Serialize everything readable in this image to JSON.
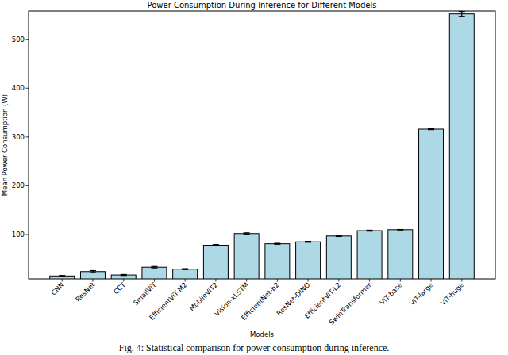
{
  "chart_data": {
    "type": "bar",
    "title": "Power Consumption During Inference for Different Models",
    "x_label": "Models",
    "y_label": "Mean Power Consumption (W)",
    "caption": "Fig. 4: Statistical comparison for power consumption during inference.",
    "categories": [
      "CNN",
      "ResNet",
      "CCT",
      "SmallViT",
      "EfficientViT-M2",
      "MobileViT2",
      "Vision-xLSTM",
      "EfficientNet-b2",
      "ResNet-DINO",
      "EfficientViT-L2",
      "SwinTransformer",
      "ViT-base",
      "ViT-large",
      "ViT-huge"
    ],
    "values": [
      15,
      24,
      17,
      33,
      29,
      78,
      102,
      81,
      85,
      97,
      108,
      110,
      316,
      552
    ],
    "errors": [
      1,
      2,
      1,
      1.5,
      1,
      1.5,
      1.5,
      1,
      1,
      1,
      1,
      0.5,
      1,
      5
    ],
    "color": "#add8e6",
    "ylim": [
      9,
      558
    ],
    "yticks": [
      100,
      200,
      300,
      400,
      500
    ],
    "grid": false
  }
}
